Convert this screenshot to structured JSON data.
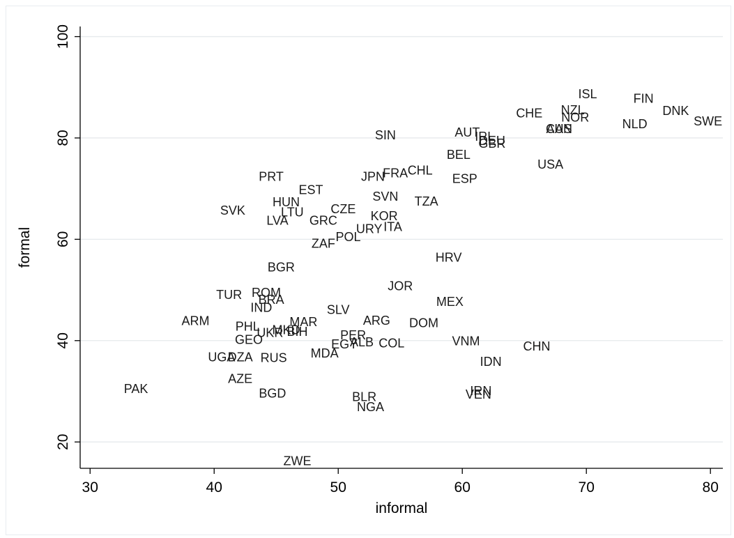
{
  "chart_data": {
    "type": "scatter",
    "title": "",
    "xlabel": "informal",
    "ylabel": "formal",
    "xlim": [
      29.2,
      81
    ],
    "ylim": [
      14.8,
      102
    ],
    "xticks": [
      30,
      40,
      50,
      60,
      70,
      80
    ],
    "yticks": [
      20,
      40,
      60,
      80,
      100
    ],
    "grid": "horizontal",
    "marker": "label-only",
    "points": [
      {
        "label": "ISL",
        "x": 70.1,
        "y": 88.5
      },
      {
        "label": "FIN",
        "x": 74.6,
        "y": 87.6
      },
      {
        "label": "DNK",
        "x": 77.2,
        "y": 85.2
      },
      {
        "label": "NZL",
        "x": 68.9,
        "y": 85.3
      },
      {
        "label": "CHE",
        "x": 65.4,
        "y": 84.7
      },
      {
        "label": "NOR",
        "x": 69.1,
        "y": 83.9
      },
      {
        "label": "SWE",
        "x": 79.8,
        "y": 83.1
      },
      {
        "label": "NLD",
        "x": 73.9,
        "y": 82.6
      },
      {
        "label": "CAN",
        "x": 67.8,
        "y": 81.6
      },
      {
        "label": "AUS",
        "x": 67.8,
        "y": 81.6
      },
      {
        "label": "SIN",
        "x": 53.8,
        "y": 80.4
      },
      {
        "label": "AUT",
        "x": 60.4,
        "y": 80.9
      },
      {
        "label": "IRL",
        "x": 61.8,
        "y": 80.1
      },
      {
        "label": "DEU",
        "x": 62.4,
        "y": 79.3
      },
      {
        "label": "GBR",
        "x": 62.4,
        "y": 78.7
      },
      {
        "label": "BEL",
        "x": 59.7,
        "y": 76.5
      },
      {
        "label": "USA",
        "x": 67.1,
        "y": 74.6
      },
      {
        "label": "CHL",
        "x": 56.6,
        "y": 73.4
      },
      {
        "label": "FRA",
        "x": 54.6,
        "y": 72.9
      },
      {
        "label": "PRT",
        "x": 44.6,
        "y": 72.2
      },
      {
        "label": "JPN",
        "x": 52.8,
        "y": 72.2
      },
      {
        "label": "ESP",
        "x": 60.2,
        "y": 71.8
      },
      {
        "label": "EST",
        "x": 47.8,
        "y": 69.6
      },
      {
        "label": "SVN",
        "x": 53.8,
        "y": 68.3
      },
      {
        "label": "TZA",
        "x": 57.1,
        "y": 67.3
      },
      {
        "label": "HUN",
        "x": 45.8,
        "y": 67.2
      },
      {
        "label": "CZE",
        "x": 50.4,
        "y": 65.8
      },
      {
        "label": "SVK",
        "x": 41.5,
        "y": 65.5
      },
      {
        "label": "LTU",
        "x": 46.3,
        "y": 65.2
      },
      {
        "label": "KOR",
        "x": 53.7,
        "y": 64.4
      },
      {
        "label": "LVA",
        "x": 45.1,
        "y": 63.5
      },
      {
        "label": "GRC",
        "x": 48.8,
        "y": 63.5
      },
      {
        "label": "ITA",
        "x": 54.4,
        "y": 62.3
      },
      {
        "label": "URY",
        "x": 52.5,
        "y": 61.9
      },
      {
        "label": "POL",
        "x": 50.8,
        "y": 60.3
      },
      {
        "label": "ZAF",
        "x": 48.8,
        "y": 59.0
      },
      {
        "label": "HRV",
        "x": 58.9,
        "y": 56.2
      },
      {
        "label": "BGR",
        "x": 45.4,
        "y": 54.3
      },
      {
        "label": "JOR",
        "x": 55.0,
        "y": 50.6
      },
      {
        "label": "TUR",
        "x": 41.2,
        "y": 48.9
      },
      {
        "label": "ROM",
        "x": 44.2,
        "y": 49.3
      },
      {
        "label": "BRA",
        "x": 44.6,
        "y": 47.9
      },
      {
        "label": "MEX",
        "x": 59.0,
        "y": 47.5
      },
      {
        "label": "IND",
        "x": 43.8,
        "y": 46.3
      },
      {
        "label": "SLV",
        "x": 50.0,
        "y": 45.9
      },
      {
        "label": "ARG",
        "x": 53.1,
        "y": 43.8
      },
      {
        "label": "ARM",
        "x": 38.5,
        "y": 43.7
      },
      {
        "label": "DOM",
        "x": 56.9,
        "y": 43.3
      },
      {
        "label": "MAR",
        "x": 47.2,
        "y": 43.5
      },
      {
        "label": "PHL",
        "x": 42.7,
        "y": 42.6
      },
      {
        "label": "MKD",
        "x": 45.8,
        "y": 41.9
      },
      {
        "label": "BIH",
        "x": 46.7,
        "y": 41.6
      },
      {
        "label": "UKR",
        "x": 44.5,
        "y": 41.4
      },
      {
        "label": "PER",
        "x": 51.2,
        "y": 40.9
      },
      {
        "label": "GEO",
        "x": 42.8,
        "y": 40.0
      },
      {
        "label": "VNM",
        "x": 60.3,
        "y": 39.7
      },
      {
        "label": "ALB",
        "x": 51.9,
        "y": 39.5
      },
      {
        "label": "COL",
        "x": 54.3,
        "y": 39.3
      },
      {
        "label": "EGY",
        "x": 50.5,
        "y": 39.1
      },
      {
        "label": "CHN",
        "x": 66.0,
        "y": 38.7
      },
      {
        "label": "MDA",
        "x": 48.9,
        "y": 37.3
      },
      {
        "label": "UGA",
        "x": 40.6,
        "y": 36.6
      },
      {
        "label": "DZA",
        "x": 42.1,
        "y": 36.6
      },
      {
        "label": "RUS",
        "x": 44.8,
        "y": 36.4
      },
      {
        "label": "IDN",
        "x": 62.3,
        "y": 35.7
      },
      {
        "label": "AZE",
        "x": 42.1,
        "y": 32.3
      },
      {
        "label": "PAK",
        "x": 33.7,
        "y": 30.3
      },
      {
        "label": "IRN",
        "x": 61.5,
        "y": 29.9
      },
      {
        "label": "VEN",
        "x": 61.3,
        "y": 29.2
      },
      {
        "label": "BGD",
        "x": 44.7,
        "y": 29.4
      },
      {
        "label": "BLR",
        "x": 52.1,
        "y": 28.7
      },
      {
        "label": "NGA",
        "x": 52.6,
        "y": 26.7
      },
      {
        "label": "ZWE",
        "x": 46.7,
        "y": 16.1
      }
    ]
  }
}
